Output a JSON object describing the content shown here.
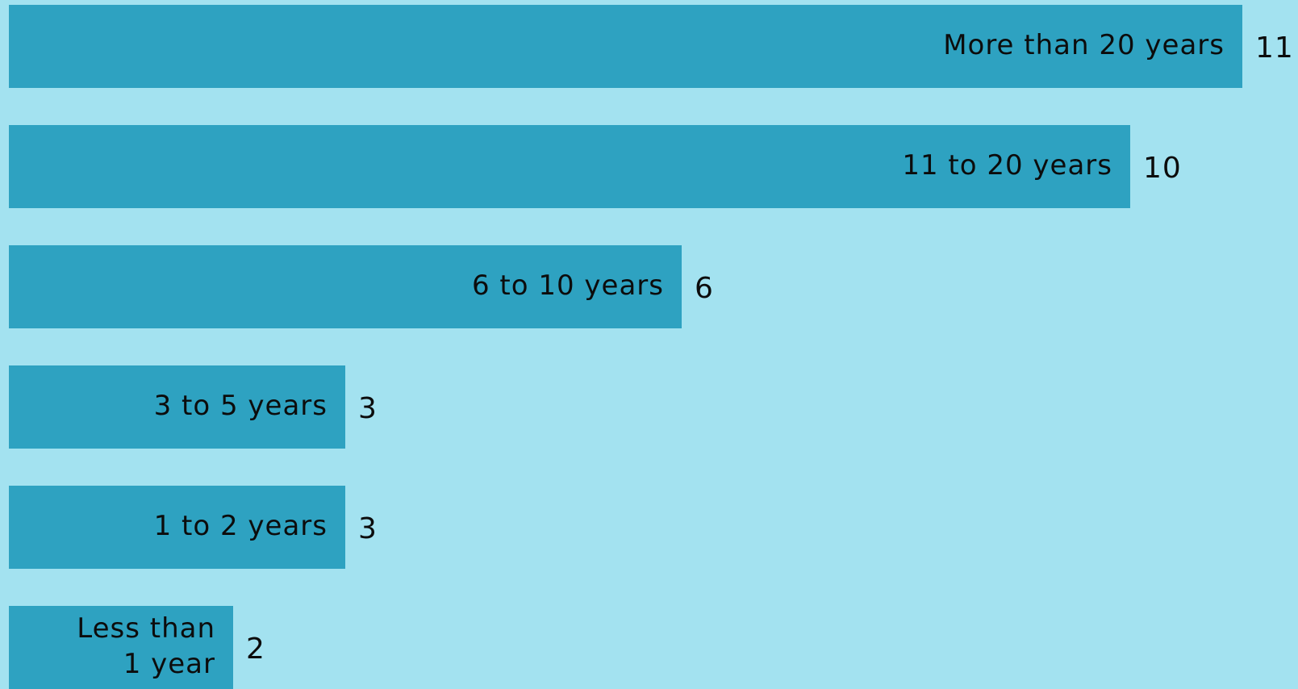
{
  "chart_data": {
    "type": "bar",
    "orientation": "horizontal",
    "title": "",
    "xlabel": "",
    "ylabel": "",
    "categories": [
      "More than 20 years",
      "11 to 20 years",
      "6 to 10 years",
      "3 to 5 years",
      "1 to 2 years",
      "Less than\n1 year"
    ],
    "values": [
      11,
      10,
      6,
      3,
      3,
      2
    ],
    "xlim": [
      0,
      11
    ],
    "grid": false,
    "legend": "none",
    "bar_color": "#2ea2c1",
    "background_color": "#a3e2f0"
  }
}
